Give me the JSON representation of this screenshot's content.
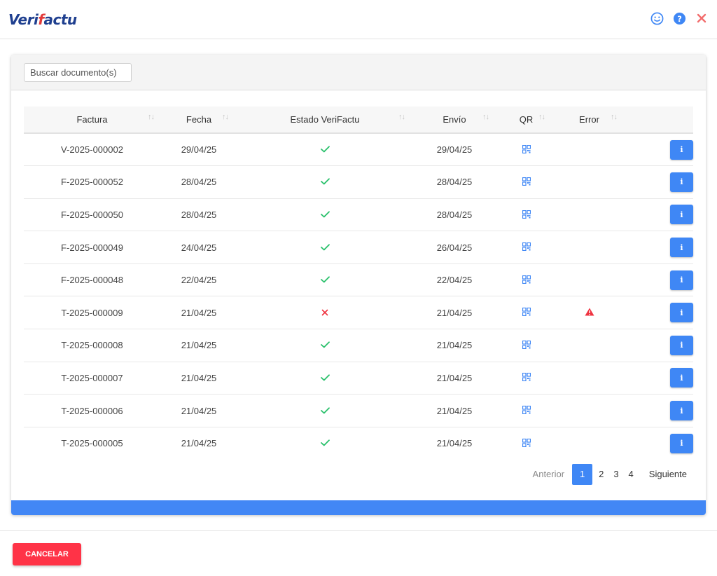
{
  "app": {
    "logo_text_a": "Veri",
    "logo_text_b": "f",
    "logo_text_c": "actu"
  },
  "colors": {
    "accent": "#4287f5",
    "cancel": "#ff3347",
    "ok": "#28c06a",
    "error": "#ef3340",
    "close_icon": "#f26d6d"
  },
  "search": {
    "placeholder": "Buscar documento(s)"
  },
  "table": {
    "columns": [
      "Factura",
      "Fecha",
      "Estado VeriFactu",
      "Envío",
      "QR",
      "Error"
    ],
    "rows": [
      {
        "factura": "V-2025-000002",
        "fecha": "29/04/25",
        "estado": "ok",
        "envio": "29/04/25",
        "error": false
      },
      {
        "factura": "F-2025-000052",
        "fecha": "28/04/25",
        "estado": "ok",
        "envio": "28/04/25",
        "error": false
      },
      {
        "factura": "F-2025-000050",
        "fecha": "28/04/25",
        "estado": "ok",
        "envio": "28/04/25",
        "error": false
      },
      {
        "factura": "F-2025-000049",
        "fecha": "24/04/25",
        "estado": "ok",
        "envio": "26/04/25",
        "error": false
      },
      {
        "factura": "F-2025-000048",
        "fecha": "22/04/25",
        "estado": "ok",
        "envio": "22/04/25",
        "error": false
      },
      {
        "factura": "T-2025-000009",
        "fecha": "21/04/25",
        "estado": "error",
        "envio": "21/04/25",
        "error": true
      },
      {
        "factura": "T-2025-000008",
        "fecha": "21/04/25",
        "estado": "ok",
        "envio": "21/04/25",
        "error": false
      },
      {
        "factura": "T-2025-000007",
        "fecha": "21/04/25",
        "estado": "ok",
        "envio": "21/04/25",
        "error": false
      },
      {
        "factura": "T-2025-000006",
        "fecha": "21/04/25",
        "estado": "ok",
        "envio": "21/04/25",
        "error": false
      },
      {
        "factura": "T-2025-000005",
        "fecha": "21/04/25",
        "estado": "ok",
        "envio": "21/04/25",
        "error": false
      }
    ],
    "info_label": "i"
  },
  "pagination": {
    "prev": "Anterior",
    "pages": [
      "1",
      "2",
      "3",
      "4"
    ],
    "current": "1",
    "next": "Siguiente"
  },
  "footer": {
    "cancel_label": "CANCELAR"
  },
  "icons": {
    "top": [
      "smiley-icon",
      "help-icon",
      "close-icon"
    ],
    "sort": "sort-arrows-icon",
    "status_ok": "check-icon",
    "status_error": "cross-icon",
    "qr": "qr-code-icon",
    "error": "warning-triangle-icon",
    "info": "info-icon"
  }
}
